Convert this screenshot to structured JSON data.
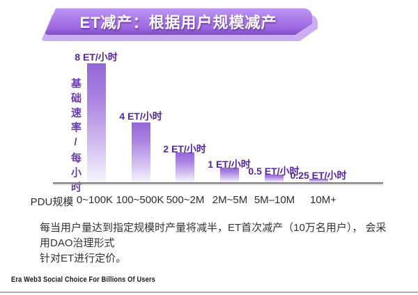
{
  "banner": {
    "title": "ET减产：根据用户规模减产"
  },
  "chart_data": {
    "type": "bar",
    "title": "ET减产：根据用户规模减产",
    "xlabel": "PDU规模",
    "ylabel": "基础速率/每小时",
    "categories": [
      "0~100K",
      "100~500K",
      "500~2M",
      "2M~5M",
      "5M–10M",
      "10M+"
    ],
    "values": [
      8,
      4,
      2,
      1,
      0.5,
      0.25
    ],
    "bar_labels": [
      "8 ET/小时",
      "4 ET/小时",
      "2 ET/小时",
      "1 ET/小时",
      "0.5 ET/小时",
      "0.25 ET/小时"
    ],
    "unit": "ET/小时",
    "ylim": [
      0,
      8
    ],
    "grid": false,
    "legend": "none"
  },
  "description": {
    "line1": "每当用户量达到指定规模时产量将减半，ET首次减产（10万名用户）， 会采用DAO治理形式",
    "line2": "针对ET进行定价。"
  },
  "footer": {
    "text": "Era Web3 Social Choice For Billions Of Users"
  },
  "colors": {
    "banner_main": "#a877e8",
    "banner_back": "#cbadf3",
    "banner_shade": "#7e4ac2",
    "bar_top": "#9566d8",
    "bar_bottom": "#f8f5fd",
    "value_label": "#55279e",
    "y_axis_label": "#6a3ab8",
    "axis_line": "#7d7d7d",
    "body_text": "#333333",
    "bottom_rule": "#aeaeae"
  }
}
